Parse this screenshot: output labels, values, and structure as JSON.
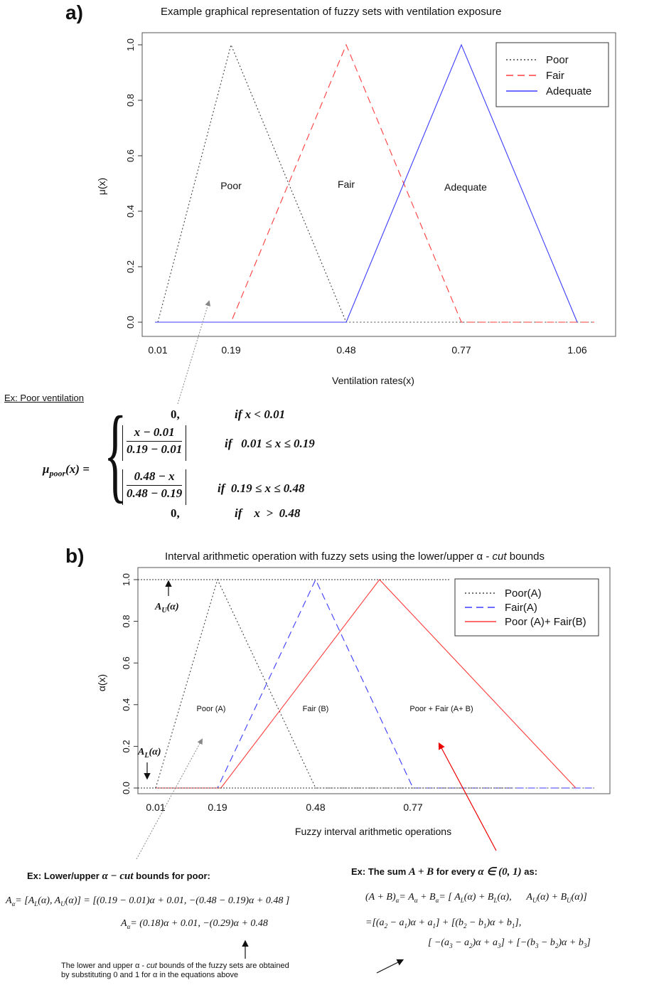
{
  "panel_a": {
    "letter": "a)",
    "title": "Example graphical representation of fuzzy sets with ventilation exposure",
    "example_label": "Ex: Poor ventilation",
    "formula": {
      "lhs": "μpoor(x) =",
      "rows": [
        {
          "expr": "0,",
          "cond": "if x < 0.01"
        },
        {
          "expr": "|(x − 0.01) / (0.19 − 0.01)|",
          "cond": "if 0.01 ≤ x ≤ 0.19"
        },
        {
          "expr": "|(0.48 − x) / (0.48 − 0.19)|",
          "cond": "if 0.19 ≤ x ≤ 0.48"
        },
        {
          "expr": "0,",
          "cond": "if x > 0.48"
        }
      ]
    }
  },
  "panel_b": {
    "letter": "b)",
    "title": "Interval arithmetic operation with fuzzy sets using the lower/upper α - cut bounds",
    "au_label": "AU(α)",
    "al_label": "AL(α)",
    "ex_left_title": "Ex: Lower/upper α − cut bounds for poor:",
    "ex_left_line1": "Aα= [AL(α), AU(α)] = [(0.19 − 0.01)α + 0.01, −(0.48 − 0.19)α + 0.48 ]",
    "ex_left_line2": "Aα= (0.18)α + 0.01, −(0.29)α + 0.48",
    "ex_right_title": "Ex: The sum A + B for every α ∈ (0, 1) as:",
    "ex_right_line1": "(A + B)α= Aα + Bα= [ AL(α) + BL(α),     AU(α) + BU(α)]",
    "ex_right_line2": "=[(a2 − a1)α + a1] + [(b2 − b1)α + b1],",
    "ex_right_line3": "[ −(a3 − a2)α + a3] + [−(b3 − b2)α + b3]",
    "note_line1": "The lower and upper α - cut bounds of the fuzzy sets are obtained",
    "note_line2": "by substituting 0 and 1 for α in the equations above"
  },
  "chart_data": [
    {
      "type": "line",
      "title": "Example graphical representation of fuzzy sets with ventilation exposure",
      "xlabel": "Ventilation rates(x)",
      "ylabel": "μ(x)",
      "xticks": [
        "0.01",
        "0.19",
        "0.48",
        "0.77",
        "1.06"
      ],
      "yticks": [
        "0.0",
        "0.2",
        "0.4",
        "0.6",
        "0.8",
        "1.0"
      ],
      "ylim": [
        0,
        1
      ],
      "legend": {
        "placement": "top-right"
      },
      "series": [
        {
          "name": "Poor",
          "style": "dotted",
          "color": "#444444",
          "x": [
            0.01,
            0.19,
            0.48,
            1.06
          ],
          "y": [
            0,
            1,
            0,
            0
          ]
        },
        {
          "name": "Fair",
          "style": "dashed",
          "color": "#ff3b3b",
          "x": [
            0.01,
            0.19,
            0.48,
            0.77,
            1.06
          ],
          "y": [
            0,
            0,
            1,
            0,
            0
          ]
        },
        {
          "name": "Adequate",
          "style": "solid",
          "color": "#3b3bff",
          "x": [
            0.01,
            0.48,
            0.77,
            1.06
          ],
          "y": [
            0,
            0,
            1,
            0
          ]
        }
      ],
      "annotations": [
        {
          "text": "Poor",
          "x": 0.19,
          "y": 0.5
        },
        {
          "text": "Fair",
          "x": 0.48,
          "y": 0.5
        },
        {
          "text": "Adequate",
          "x": 0.77,
          "y": 0.49
        }
      ]
    },
    {
      "type": "line",
      "title": "Interval arithmetic operation with fuzzy sets using the lower/upper α - cut bounds",
      "xlabel": "Fuzzy interval arithmetic operations",
      "ylabel": "α(x)",
      "xticks": [
        "0.01",
        "0.19",
        "0.48",
        "0.77"
      ],
      "yticks": [
        "0.0",
        "0.2",
        "0.4",
        "0.6",
        "0.8",
        "1.0"
      ],
      "ylim": [
        0,
        1
      ],
      "legend": {
        "placement": "top-right"
      },
      "series": [
        {
          "name": "Poor(A)",
          "style": "dotted",
          "color": "#444444",
          "x": [
            0.01,
            0.19,
            0.48,
            1.35
          ],
          "y": [
            0,
            1,
            0,
            0
          ]
        },
        {
          "name": "Fair(A)",
          "style": "dashed",
          "color": "#3b3bff",
          "x": [
            0.01,
            0.19,
            0.48,
            0.77,
            1.35
          ],
          "y": [
            0,
            0,
            1,
            0,
            0
          ]
        },
        {
          "name": "Poor (A)+ Fair(B)",
          "style": "solid",
          "color": "#ff3b3b",
          "x": [
            0.01,
            0.2,
            0.67,
            1.35
          ],
          "y": [
            0,
            0,
            1,
            0
          ]
        }
      ],
      "annotations": [
        {
          "text": "Poor (A)",
          "x": 0.19,
          "y": 0.3
        },
        {
          "text": "Fair (B)",
          "x": 0.48,
          "y": 0.3
        },
        {
          "text": "Poor + Fair (A+ B)",
          "x": 0.77,
          "y": 0.3
        }
      ]
    }
  ]
}
